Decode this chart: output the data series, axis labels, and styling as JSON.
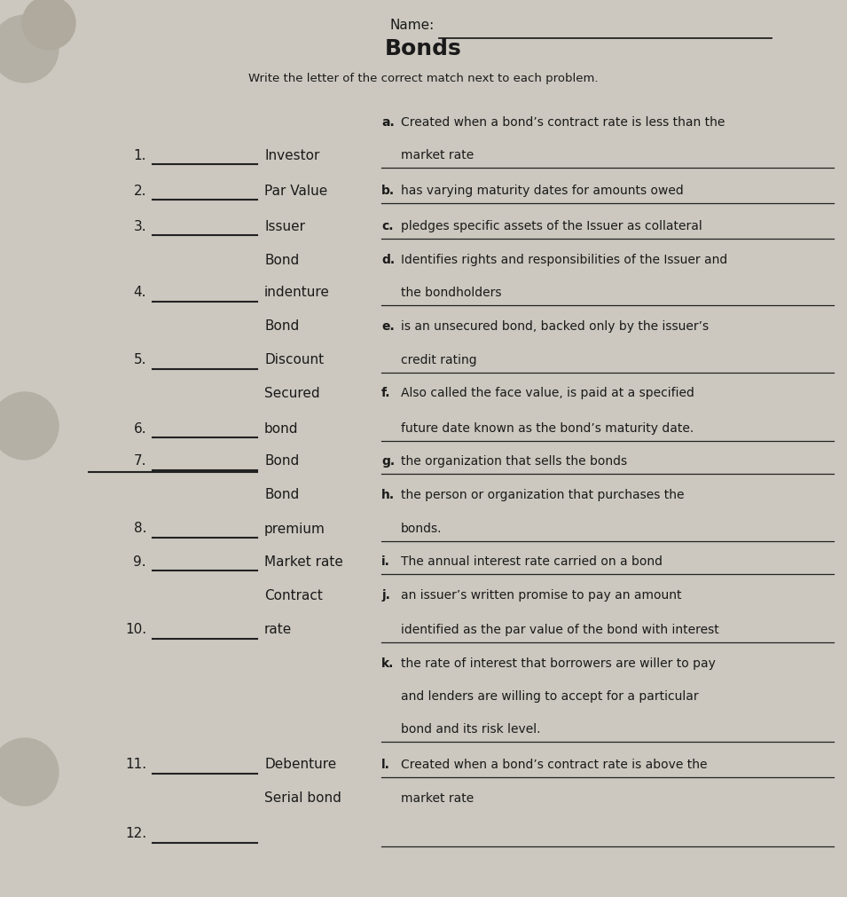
{
  "title": "Bonds",
  "name_label": "Name:",
  "subtitle": "Write the letter of the correct match next to each problem.",
  "bg_color": "#ccc8bf",
  "text_color": "#1a1a1a",
  "line_color": "#222222",
  "rows": [
    {
      "num": "",
      "blank": false,
      "term": "",
      "letter": "a.",
      "line1": "Created when a bond’s contract rate is less than the",
      "line2": ""
    },
    {
      "num": "1.",
      "blank": true,
      "term": "Investor",
      "letter": "",
      "line1": "market rate",
      "line2": "",
      "underline_right": true
    },
    {
      "num": "2.",
      "blank": true,
      "term": "Par Value",
      "letter": "b.",
      "line1": "has varying maturity dates for amounts owed",
      "line2": "",
      "underline_right": true
    },
    {
      "num": "3.",
      "blank": true,
      "term": "Issuer",
      "letter": "c.",
      "line1": "pledges specific assets of the Issuer as collateral",
      "line2": "",
      "underline_right": true
    },
    {
      "num": "",
      "blank": false,
      "term": "Bond",
      "letter": "d.",
      "line1": "Identifies rights and responsibilities of the Issuer and",
      "line2": ""
    },
    {
      "num": "4.",
      "blank": true,
      "term": "indenture",
      "letter": "",
      "line1": "the bondholders",
      "line2": "",
      "underline_right": true
    },
    {
      "num": "",
      "blank": false,
      "term": "Bond",
      "letter": "e.",
      "line1": "is an unsecured bond, backed only by the issuer’s",
      "line2": ""
    },
    {
      "num": "5.",
      "blank": true,
      "term": "Discount",
      "letter": "",
      "line1": "credit rating",
      "line2": "",
      "underline_right": true
    },
    {
      "num": "",
      "blank": false,
      "term": "Secured",
      "letter": "f.",
      "line1": "Also called the face value, is paid at a specified",
      "line2": ""
    },
    {
      "num": "6.",
      "blank": true,
      "term": "bond",
      "letter": "",
      "line1": "future date known as the bond’s maturity date.",
      "line2": "",
      "underline_right": true
    },
    {
      "num": "7.",
      "blank": true,
      "term": "Bond",
      "letter": "g.",
      "line1": "the organization that sells the bonds",
      "line2": "",
      "underline_right": true
    },
    {
      "num": "",
      "blank": false,
      "term": "Bond",
      "letter": "h.",
      "line1": "the person or organization that purchases the",
      "line2": ""
    },
    {
      "num": "8.",
      "blank": true,
      "term": "premium",
      "letter": "",
      "line1": "bonds.",
      "line2": "",
      "underline_right": true
    },
    {
      "num": "9.",
      "blank": true,
      "term": "Market rate",
      "letter": "i.",
      "line1": "The annual interest rate carried on a bond",
      "line2": "",
      "underline_right": true
    },
    {
      "num": "",
      "blank": false,
      "term": "Contract",
      "letter": "j.",
      "line1": "an issuer’s written promise to pay an amount",
      "line2": ""
    },
    {
      "num": "10.",
      "blank": true,
      "term": "rate",
      "letter": "",
      "line1": "identified as the par value of the bond with interest",
      "line2": "",
      "underline_right": true
    },
    {
      "num": "",
      "blank": false,
      "term": "",
      "letter": "k.",
      "line1": "the rate of interest that borrowers are willer to pay",
      "line2": ""
    },
    {
      "num": "",
      "blank": false,
      "term": "",
      "letter": "",
      "line1": "and lenders are willing to accept for a particular",
      "line2": ""
    },
    {
      "num": "",
      "blank": false,
      "term": "",
      "letter": "",
      "line1": "bond and its risk level.",
      "line2": "",
      "underline_right": true
    },
    {
      "num": "11.",
      "blank": true,
      "term": "Debenture",
      "letter": "l.",
      "line1": "Created when a bond’s contract rate is above the",
      "line2": "",
      "underline_right": true
    },
    {
      "num": "",
      "blank": false,
      "term": "Serial bond",
      "letter": "",
      "line1": "market rate",
      "line2": ""
    },
    {
      "num": "12.",
      "blank": true,
      "term": "",
      "letter": "",
      "line1": "",
      "line2": "",
      "underline_right": true
    }
  ]
}
